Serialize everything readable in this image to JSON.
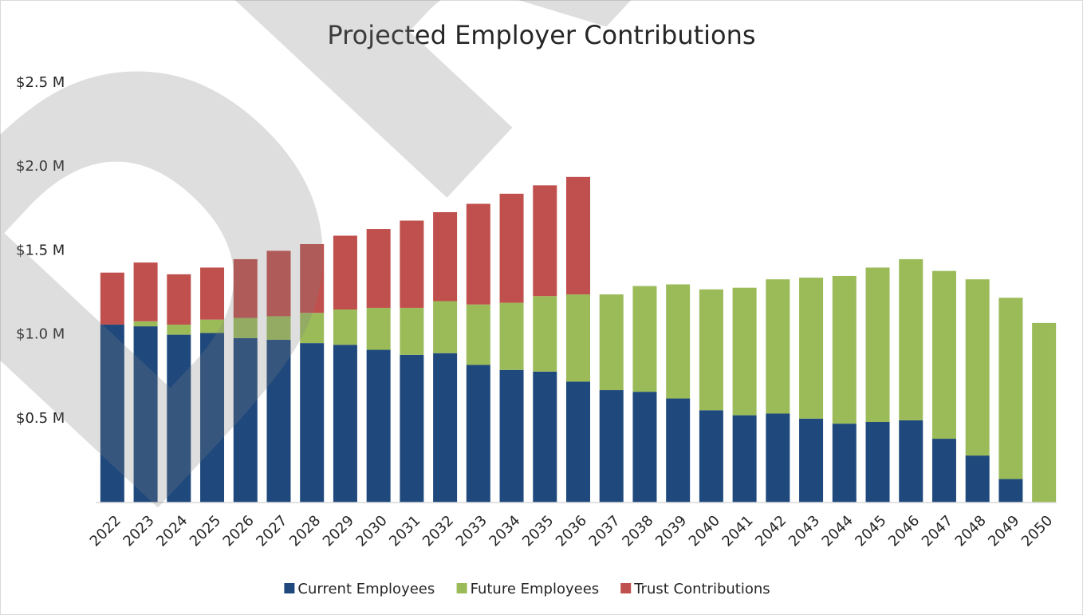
{
  "chart_data": {
    "type": "stacked_bar",
    "title": "Projected Employer Contributions",
    "watermark": "DRAFT",
    "categories": [
      "2022",
      "2023",
      "2024",
      "2025",
      "2026",
      "2027",
      "2028",
      "2029",
      "2030",
      "2031",
      "2032",
      "2033",
      "2034",
      "2035",
      "2036",
      "2037",
      "2038",
      "2039",
      "2040",
      "2041",
      "2042",
      "2043",
      "2044",
      "2045",
      "2046",
      "2047",
      "2048",
      "2049",
      "2050"
    ],
    "series": [
      {
        "name": "Current Employees",
        "color": "#1f497d",
        "values": [
          1.06,
          1.05,
          1.0,
          1.01,
          0.98,
          0.97,
          0.95,
          0.94,
          0.91,
          0.88,
          0.89,
          0.82,
          0.79,
          0.78,
          0.72,
          0.67,
          0.66,
          0.62,
          0.55,
          0.52,
          0.53,
          0.5,
          0.47,
          0.48,
          0.49,
          0.38,
          0.28,
          0.14,
          0
        ]
      },
      {
        "name": "Future Employees",
        "color": "#9bbb59",
        "values": [
          0,
          0.03,
          0.06,
          0.08,
          0.12,
          0.14,
          0.18,
          0.21,
          0.25,
          0.28,
          0.31,
          0.36,
          0.4,
          0.45,
          0.52,
          0.57,
          0.63,
          0.68,
          0.72,
          0.76,
          0.8,
          0.84,
          0.88,
          0.92,
          0.96,
          1.0,
          1.05,
          1.08,
          1.07
        ]
      },
      {
        "name": "Trust Contributions",
        "color": "#c0504d",
        "values": [
          0.31,
          0.35,
          0.3,
          0.31,
          0.35,
          0.39,
          0.41,
          0.44,
          0.47,
          0.52,
          0.53,
          0.6,
          0.65,
          0.66,
          0.7,
          0,
          0,
          0,
          0,
          0,
          0,
          0,
          0,
          0,
          0,
          0,
          0,
          0,
          0
        ]
      }
    ],
    "ylim": [
      0,
      2.5
    ],
    "yticks": [
      {
        "value": 0.5,
        "label": "$0.5 M"
      },
      {
        "value": 1.0,
        "label": "$1.0 M"
      },
      {
        "value": 1.5,
        "label": "$1.5 M"
      },
      {
        "value": 2.0,
        "label": "$2.0 M"
      },
      {
        "value": 2.5,
        "label": "$2.5 M"
      }
    ],
    "legend": "bottom"
  }
}
